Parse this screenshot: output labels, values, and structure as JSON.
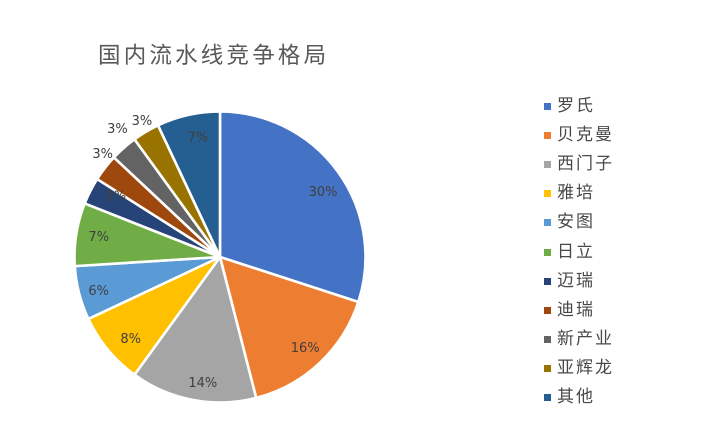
{
  "title": "国内流水线竞争格局",
  "chart_data": {
    "type": "pie",
    "title": "国内流水线竞争格局",
    "categories": [
      "罗氏",
      "贝克曼",
      "西门子",
      "雅培",
      "安图",
      "日立",
      "迈瑞",
      "迪瑞",
      "新产业",
      "亚辉龙",
      "其他"
    ],
    "values": [
      30,
      16,
      14,
      8,
      6,
      7,
      3,
      3,
      3,
      3,
      7
    ],
    "unit": "%",
    "colors": [
      "#4472C4",
      "#ED7D31",
      "#A5A5A5",
      "#FFC000",
      "#5B9BD5",
      "#70AD47",
      "#264478",
      "#9E480E",
      "#636363",
      "#997300",
      "#255E91"
    ],
    "data_labels": [
      "30%",
      "16%",
      "14%",
      "8%",
      "6%",
      "7%",
      "3%",
      "3%",
      "3%",
      "3%",
      "7%"
    ],
    "legend_position": "right",
    "start_angle_deg": 0,
    "direction": "clockwise"
  }
}
